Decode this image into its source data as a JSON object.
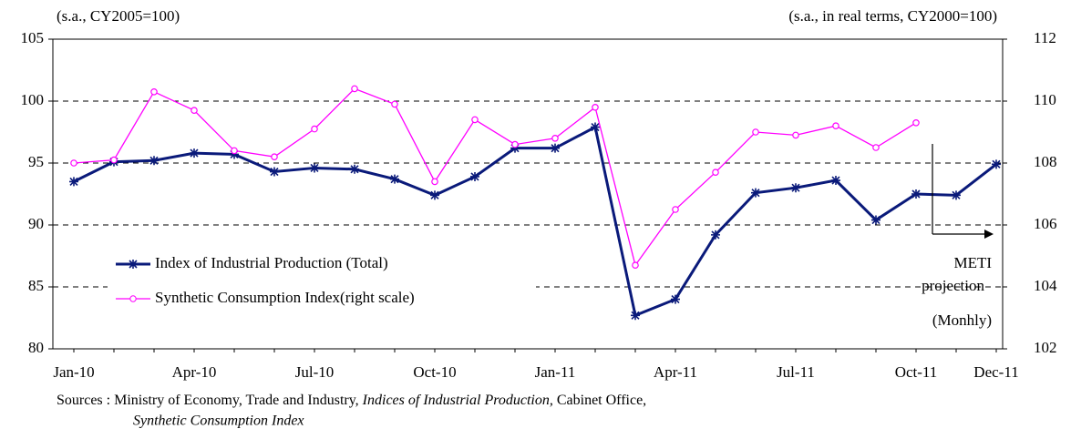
{
  "chart_data": {
    "type": "line",
    "left_unit": "(s.a., CY2005=100)",
    "right_unit": "(s.a., in real terms, CY2000=100)",
    "categories": [
      "Jan-10",
      null,
      null,
      "Apr-10",
      null,
      null,
      "Jul-10",
      null,
      null,
      "Oct-10",
      null,
      null,
      "Jan-11",
      null,
      null,
      "Apr-11",
      null,
      null,
      "Jul-11",
      null,
      null,
      "Oct-11",
      null,
      "Dec-11"
    ],
    "series": [
      {
        "name": "Index of Industrial Production (Total)",
        "color": "#0a1a7a",
        "axis": "y",
        "values": [
          93.5,
          95.1,
          95.2,
          95.8,
          95.7,
          94.3,
          94.6,
          94.5,
          93.7,
          92.4,
          93.9,
          96.2,
          96.2,
          97.9,
          82.7,
          84.0,
          89.2,
          92.6,
          93.0,
          93.6,
          90.4,
          92.5,
          92.4,
          94.9
        ]
      },
      {
        "name": "Synthetic Consumption Index(right scale)",
        "color": "#ff00ff",
        "axis": "y2",
        "values": [
          108.0,
          108.1,
          110.3,
          109.7,
          108.4,
          108.2,
          109.1,
          110.4,
          109.9,
          107.4,
          109.4,
          108.6,
          108.8,
          109.8,
          104.7,
          106.5,
          107.7,
          109.0,
          108.9,
          109.2,
          108.5,
          109.3,
          null,
          null
        ]
      }
    ],
    "ylim": [
      80,
      105
    ],
    "yticks": [
      80,
      85,
      90,
      95,
      100,
      105
    ],
    "y2lim": [
      102,
      112
    ],
    "y2ticks": [
      102,
      104,
      106,
      108,
      110,
      112
    ],
    "grid": true,
    "annotations": [
      "METI",
      "projection",
      "(Monhly)"
    ],
    "sources": [
      "Sources : Ministry of Economy, Trade and Industry, ",
      "Indices of Industrial Production,",
      " Cabinet Office,",
      "Synthetic Consumption Index"
    ]
  }
}
